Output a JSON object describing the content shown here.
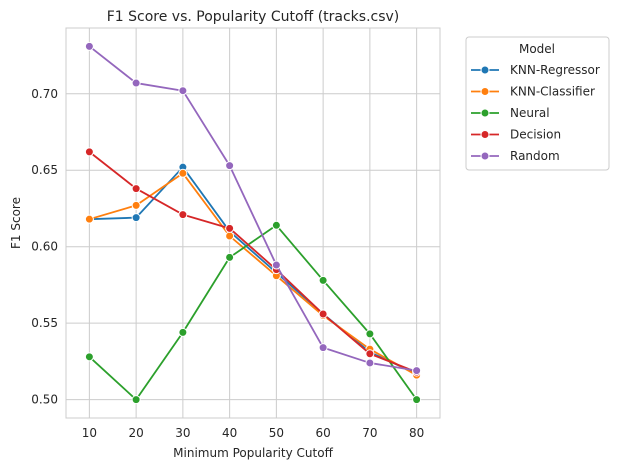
{
  "chart_data": {
    "type": "line",
    "title": "F1 Score vs. Popularity Cutoff (tracks.csv)",
    "xlabel": "Minimum Popularity Cutoff",
    "ylabel": "F1 Score",
    "x": [
      10,
      20,
      30,
      40,
      50,
      60,
      70,
      80
    ],
    "xlim": [
      5,
      85
    ],
    "ylim": [
      0.488,
      0.743
    ],
    "xticks": [
      "10",
      "20",
      "30",
      "40",
      "50",
      "60",
      "70",
      "80"
    ],
    "yticks": [
      "0.50",
      "0.55",
      "0.60",
      "0.65",
      "0.70"
    ],
    "ytick_values": [
      0.5,
      0.55,
      0.6,
      0.65,
      0.7
    ],
    "grid": true,
    "legend": {
      "title": "Model",
      "placement": "outside-top-right"
    },
    "series": [
      {
        "name": "KNN-Regressor",
        "color": "#1f77b4",
        "values": [
          0.618,
          0.619,
          0.652,
          0.61,
          0.583,
          0.556,
          0.531,
          0.517
        ]
      },
      {
        "name": "KNN-Classifier",
        "color": "#ff7f0e",
        "values": [
          0.618,
          0.627,
          0.648,
          0.607,
          0.581,
          0.555,
          0.533,
          0.516
        ]
      },
      {
        "name": "Neural",
        "color": "#2ca02c",
        "values": [
          0.528,
          0.5,
          0.544,
          0.593,
          0.614,
          0.578,
          0.543,
          0.5
        ]
      },
      {
        "name": "Decision",
        "color": "#d62728",
        "values": [
          0.662,
          0.638,
          0.621,
          0.612,
          0.585,
          0.556,
          0.53,
          0.518
        ]
      },
      {
        "name": "Random",
        "color": "#9467bd",
        "values": [
          0.731,
          0.707,
          0.702,
          0.653,
          0.588,
          0.534,
          0.524,
          0.519
        ]
      }
    ]
  }
}
